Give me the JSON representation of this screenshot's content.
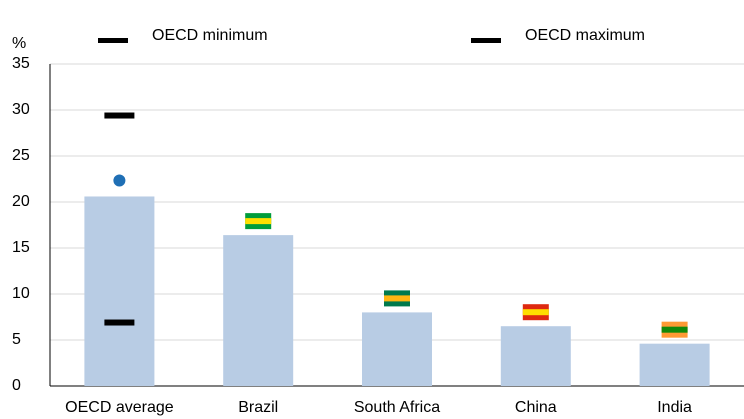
{
  "chart_data": {
    "type": "bar",
    "y_label": "%",
    "categories": [
      "OECD average",
      "Brazil",
      "South Africa",
      "China",
      "India"
    ],
    "values": [
      20.6,
      16.4,
      8.0,
      6.5,
      4.6
    ],
    "color": "#b8cce4",
    "markers": [
      {
        "name": "OECD minimum",
        "color": "#000000",
        "value": 6.9
      },
      {
        "name": "OECD maximum",
        "color": "#000000",
        "value": 29.4
      }
    ],
    "ylim": [
      0,
      35
    ],
    "yticks": [
      0,
      5,
      10,
      15,
      20,
      25,
      30,
      35
    ],
    "grid": true
  }
}
